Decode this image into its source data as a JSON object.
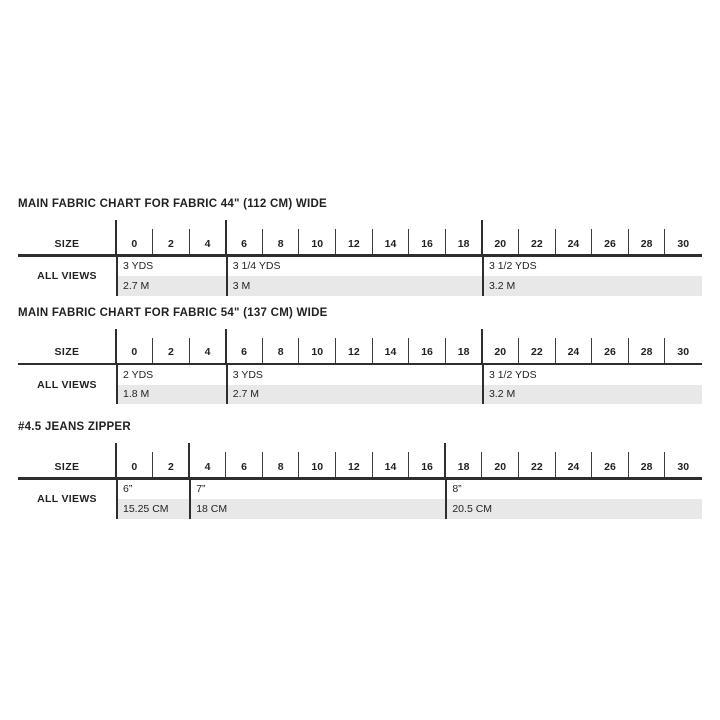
{
  "page": {
    "background": "#ffffff"
  },
  "colors": {
    "text": "#231f20",
    "rule_line": "#2e2e2e",
    "tick_line": "#3d3d3d",
    "metric_row_shade": "#e8e8e8"
  },
  "labels": {
    "size_header": "SIZE",
    "all_views": "ALL VIEWS"
  },
  "sizes": [
    "0",
    "2",
    "4",
    "6",
    "8",
    "10",
    "12",
    "14",
    "16",
    "18",
    "20",
    "22",
    "24",
    "26",
    "28",
    "30"
  ],
  "tables": [
    {
      "id": "fabric-44",
      "title": "MAIN FABRIC CHART FOR FABRIC 44\" (112 CM) WIDE",
      "row_label": "ALL VIEWS",
      "groups": [
        {
          "from_size": "0",
          "span": 3,
          "imperial": "3 YDS",
          "metric": "2.7 M"
        },
        {
          "from_size": "6",
          "span": 7,
          "imperial": "3 1/4 YDS",
          "metric": "3 M"
        },
        {
          "from_size": "20",
          "span": 6,
          "imperial": "3 1/2 YDS",
          "metric": "3.2 M"
        }
      ]
    },
    {
      "id": "fabric-54",
      "title": "MAIN FABRIC CHART FOR FABRIC 54\" (137 CM) WIDE",
      "row_label": "ALL VIEWS",
      "groups": [
        {
          "from_size": "0",
          "span": 3,
          "imperial": "2 YDS",
          "metric": "1.8 M"
        },
        {
          "from_size": "6",
          "span": 7,
          "imperial": "3 YDS",
          "metric": "2.7 M"
        },
        {
          "from_size": "20",
          "span": 6,
          "imperial": "3 1/2 YDS",
          "metric": "3.2 M"
        }
      ]
    },
    {
      "id": "jeans-zipper",
      "title": "#4.5 JEANS ZIPPER",
      "row_label": "ALL VIEWS",
      "groups": [
        {
          "from_size": "0",
          "span": 2,
          "imperial": "6”",
          "metric": "15.25 CM"
        },
        {
          "from_size": "4",
          "span": 7,
          "imperial": "7”",
          "metric": "18 CM"
        },
        {
          "from_size": "18",
          "span": 7,
          "imperial": "8”",
          "metric": "20.5 CM"
        }
      ]
    }
  ]
}
